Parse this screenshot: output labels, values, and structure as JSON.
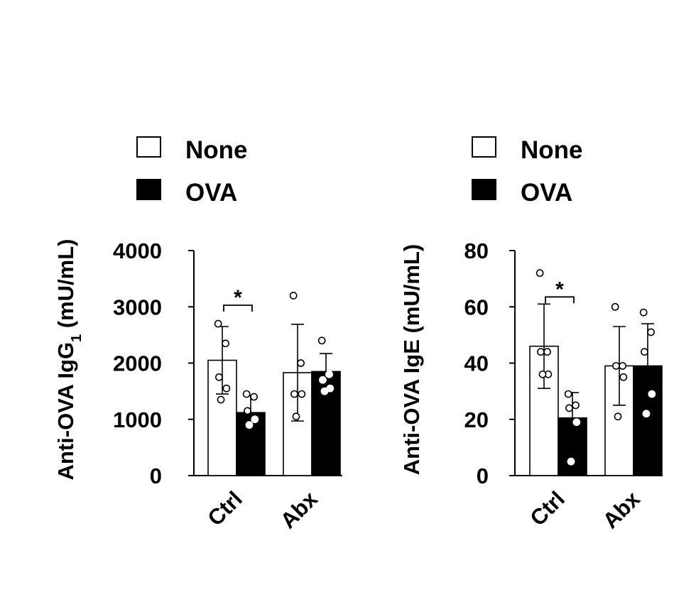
{
  "colors": {
    "none_fill": "#ffffff",
    "ova_fill": "#000000",
    "stroke": "#000000"
  },
  "chart_data": [
    {
      "type": "bar",
      "ylabel_main": "Anti-OVA IgG",
      "ylabel_sub": "1",
      "ylabel_unit": " (mU/mL)",
      "categories": [
        "Ctrl",
        "Abx"
      ],
      "legend": [
        "None",
        "OVA"
      ],
      "legend_placement": "top",
      "ylim": [
        0,
        4000
      ],
      "yticks": [
        0,
        1000,
        2000,
        3000,
        4000
      ],
      "ytick_labels": [
        "0",
        "1000",
        "2000",
        "3000",
        "4000"
      ],
      "series": [
        {
          "name": "None",
          "values": [
            2050,
            1830
          ],
          "sd": [
            600,
            860
          ],
          "points": [
            [
              2700,
              2350,
              1750,
              1550,
              1350
            ],
            [
              3200,
              2000,
              1450,
              1450,
              1050
            ]
          ]
        },
        {
          "name": "OVA",
          "values": [
            1120,
            1850
          ],
          "sd": [
            300,
            320
          ],
          "points": [
            [
              1450,
              1400,
              1150,
              1000,
              900
            ],
            [
              2400,
              1800,
              1700,
              1550,
              1500
            ]
          ]
        }
      ],
      "significance": [
        {
          "category": "Ctrl",
          "label": "*"
        }
      ]
    },
    {
      "type": "bar",
      "ylabel_main": "Anti-OVA IgE",
      "ylabel_sub": "",
      "ylabel_unit": " (mU/mL)",
      "categories": [
        "Ctrl",
        "Abx"
      ],
      "legend": [
        "None",
        "OVA"
      ],
      "legend_placement": "top",
      "ylim": [
        0,
        80
      ],
      "yticks": [
        0,
        20,
        40,
        60,
        80
      ],
      "ytick_labels": [
        "0",
        "20",
        "40",
        "60",
        "80"
      ],
      "series": [
        {
          "name": "None",
          "values": [
            46,
            39
          ],
          "sd": [
            15,
            14
          ],
          "points": [
            [
              72,
              44,
              44,
              36,
              36
            ],
            [
              60,
              39,
              39,
              35,
              21
            ]
          ]
        },
        {
          "name": "OVA",
          "values": [
            20.5,
            39
          ],
          "sd": [
            9,
            15
          ],
          "points": [
            [
              29,
              25,
              24,
              19,
              5
            ],
            [
              58,
              51,
              44,
              29,
              22
            ]
          ]
        }
      ],
      "significance": [
        {
          "category": "Ctrl",
          "label": "*"
        }
      ]
    }
  ]
}
